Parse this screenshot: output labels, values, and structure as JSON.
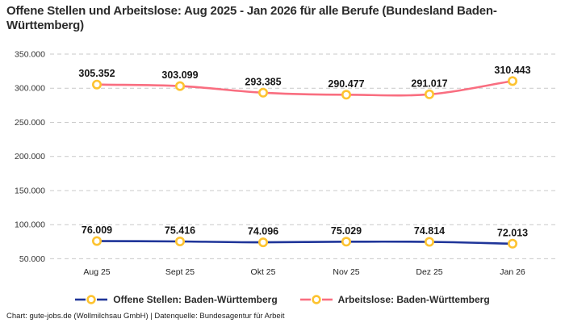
{
  "title": "Offene Stellen und Arbeitslose: Aug 2025 - Jan 2026 für alle Berufe (Bundesland Baden-Württemberg)",
  "footer": "Chart: gute-jobs.de (Wollmilchsau GmbH) | Datenquelle: Bundesagentur für Arbeit",
  "colors": {
    "offene_stellen_line": "#1f3599",
    "arbeitslose_line": "#f96e80",
    "marker_ring": "#fdc330",
    "marker_fill": "#ffffff",
    "gridline": "#c9c9c9",
    "title_text": "#2b2b2b"
  },
  "chart_data": {
    "type": "line",
    "categories": [
      "Aug 25",
      "Sept 25",
      "Okt 25",
      "Nov 25",
      "Dez 25",
      "Jan 26"
    ],
    "series": [
      {
        "name": "Offene Stellen: Baden-Württemberg",
        "color": "#1f3599",
        "values": [
          76009,
          75416,
          74096,
          75029,
          74814,
          72013
        ],
        "value_labels": [
          "76.009",
          "75.416",
          "74.096",
          "75.029",
          "74.814",
          "72.013"
        ]
      },
      {
        "name": "Arbeitslose: Baden-Württemberg",
        "color": "#f96e80",
        "values": [
          305352,
          303099,
          293385,
          290477,
          291017,
          310443
        ],
        "value_labels": [
          "305.352",
          "303.099",
          "293.385",
          "290.477",
          "291.017",
          "310.443"
        ]
      }
    ],
    "marker_color": "#fdc330",
    "ylim": [
      50000,
      350000
    ],
    "yticks": [
      350000,
      300000,
      250000,
      200000,
      150000,
      100000,
      50000
    ],
    "ytick_labels": [
      "350.000",
      "300.000",
      "250.000",
      "200.000",
      "150.000",
      "100.000",
      "50.000"
    ],
    "grid": "horizontal dashed",
    "legend_position": "bottom",
    "curve": "monotone"
  }
}
